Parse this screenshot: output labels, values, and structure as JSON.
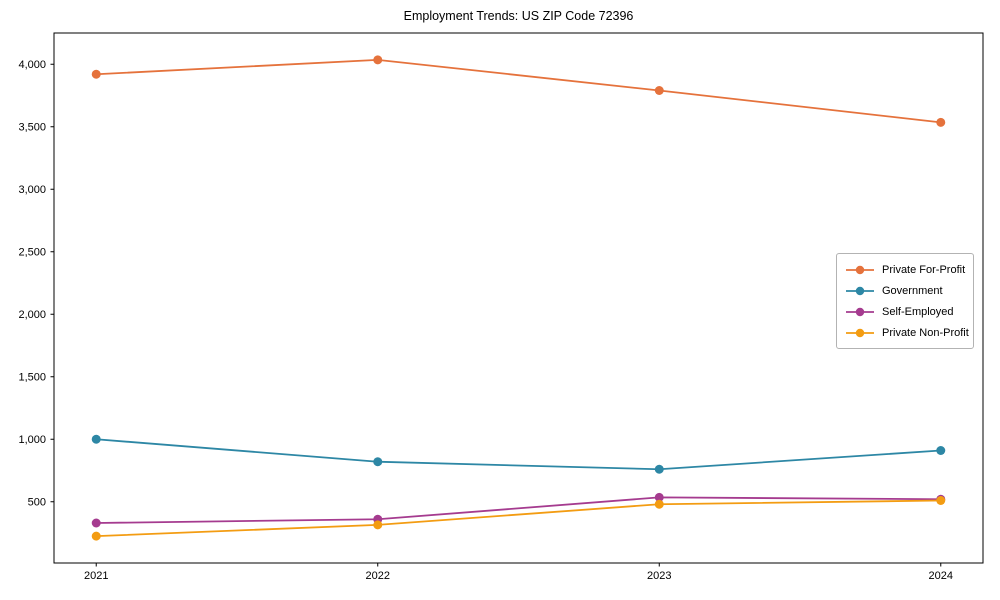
{
  "chart_data": {
    "type": "line",
    "title": "Employment Trends: US ZIP Code 72396",
    "categories": [
      "2021",
      "2022",
      "2023",
      "2024"
    ],
    "series": [
      {
        "name": "Private For-Profit",
        "color": "#e5723c",
        "values": [
          3920,
          4035,
          3790,
          3535
        ]
      },
      {
        "name": "Government",
        "color": "#2d87a5",
        "values": [
          1000,
          820,
          760,
          910
        ]
      },
      {
        "name": "Self-Employed",
        "color": "#a53b8f",
        "values": [
          330,
          360,
          535,
          520
        ]
      },
      {
        "name": "Private Non-Profit",
        "color": "#f39c12",
        "values": [
          225,
          315,
          480,
          510
        ]
      }
    ],
    "xlabel": "",
    "ylabel": "",
    "ylim": [
      10,
      4250
    ],
    "ytick_values": [
      500,
      1000,
      1500,
      2000,
      2500,
      3000,
      3500,
      4000
    ],
    "ytick_labels": [
      "500",
      "1,000",
      "1,500",
      "2,000",
      "2,500",
      "3,000",
      "3,500",
      "4,000"
    ],
    "legend_position": "center right",
    "grid": false,
    "marker": "circle",
    "frame_color": "#000000",
    "background_color": "#ffffff"
  }
}
